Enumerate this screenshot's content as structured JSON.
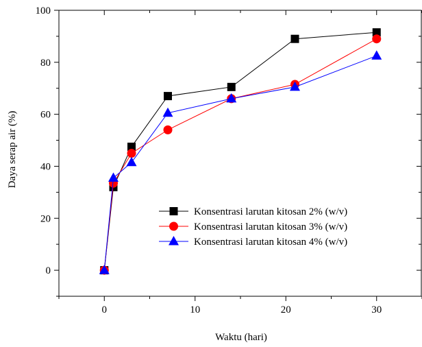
{
  "chart_data": {
    "type": "line",
    "xlabel": "Waktu (hari)",
    "ylabel": "Daya serap air (%)",
    "xlim": [
      -5,
      35
    ],
    "ylim": [
      -10,
      100
    ],
    "xticks": [
      0,
      10,
      20,
      30
    ],
    "yticks": [
      0,
      20,
      40,
      60,
      80,
      100
    ],
    "x": [
      0,
      1,
      3,
      7,
      14,
      21,
      30
    ],
    "series": [
      {
        "name": "Konsentrasi larutan kitosan 2% (w/v)",
        "color": "#000000",
        "marker": "square",
        "values": [
          0,
          32.0,
          47.5,
          67.0,
          70.5,
          89.0,
          91.5
        ]
      },
      {
        "name": "Konsentrasi larutan kitosan 3% (w/v)",
        "color": "#ff0000",
        "marker": "circle",
        "values": [
          0,
          33.5,
          45.0,
          54.0,
          66.0,
          71.5,
          89.0
        ]
      },
      {
        "name": "Konsentrasi larutan kitosan 4% (w/v)",
        "color": "#0000ff",
        "marker": "triangle",
        "values": [
          0,
          35.5,
          41.5,
          60.5,
          66.0,
          70.5,
          82.5
        ]
      }
    ],
    "legend_position": "bottom-right",
    "grid": false
  }
}
